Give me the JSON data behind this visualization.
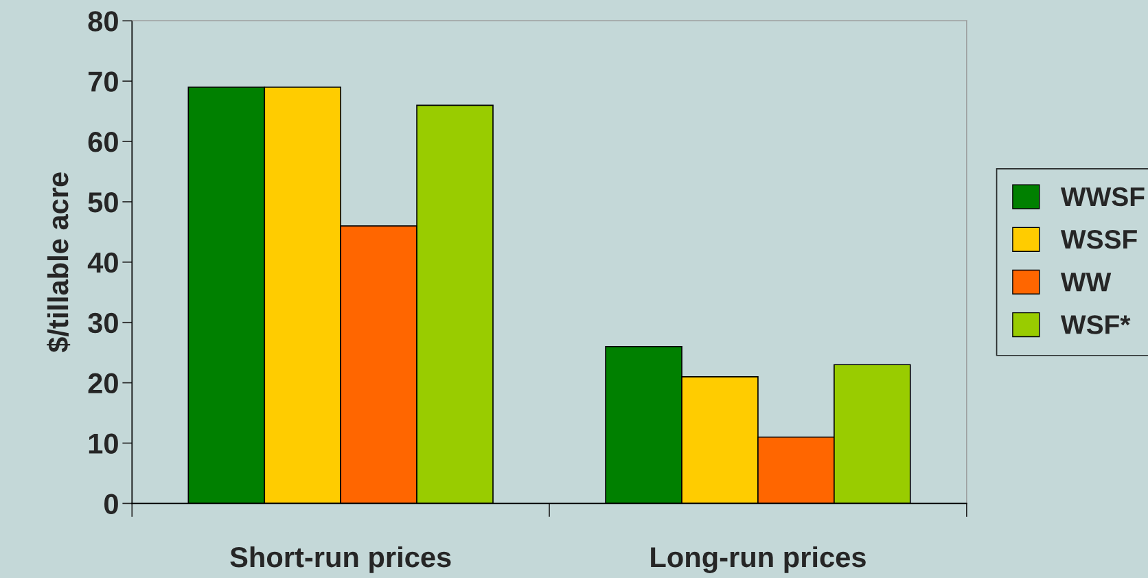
{
  "chart_data": {
    "type": "bar",
    "ylabel": "$/tillable acre",
    "categories": [
      "Short-run prices",
      "Long-run prices"
    ],
    "series": [
      {
        "name": "WWSF",
        "color": "#008000",
        "values": [
          69,
          26
        ]
      },
      {
        "name": "WSSF",
        "color": "#ffcc00",
        "values": [
          69,
          21
        ]
      },
      {
        "name": "WW",
        "color": "#ff6600",
        "values": [
          46,
          11
        ]
      },
      {
        "name": "WSF*",
        "color": "#99cc00",
        "values": [
          66,
          23
        ]
      }
    ],
    "ylim": [
      0,
      80
    ],
    "yticks": [
      0,
      10,
      20,
      30,
      40,
      50,
      60,
      70,
      80
    ],
    "grid": false,
    "legend": "right"
  }
}
